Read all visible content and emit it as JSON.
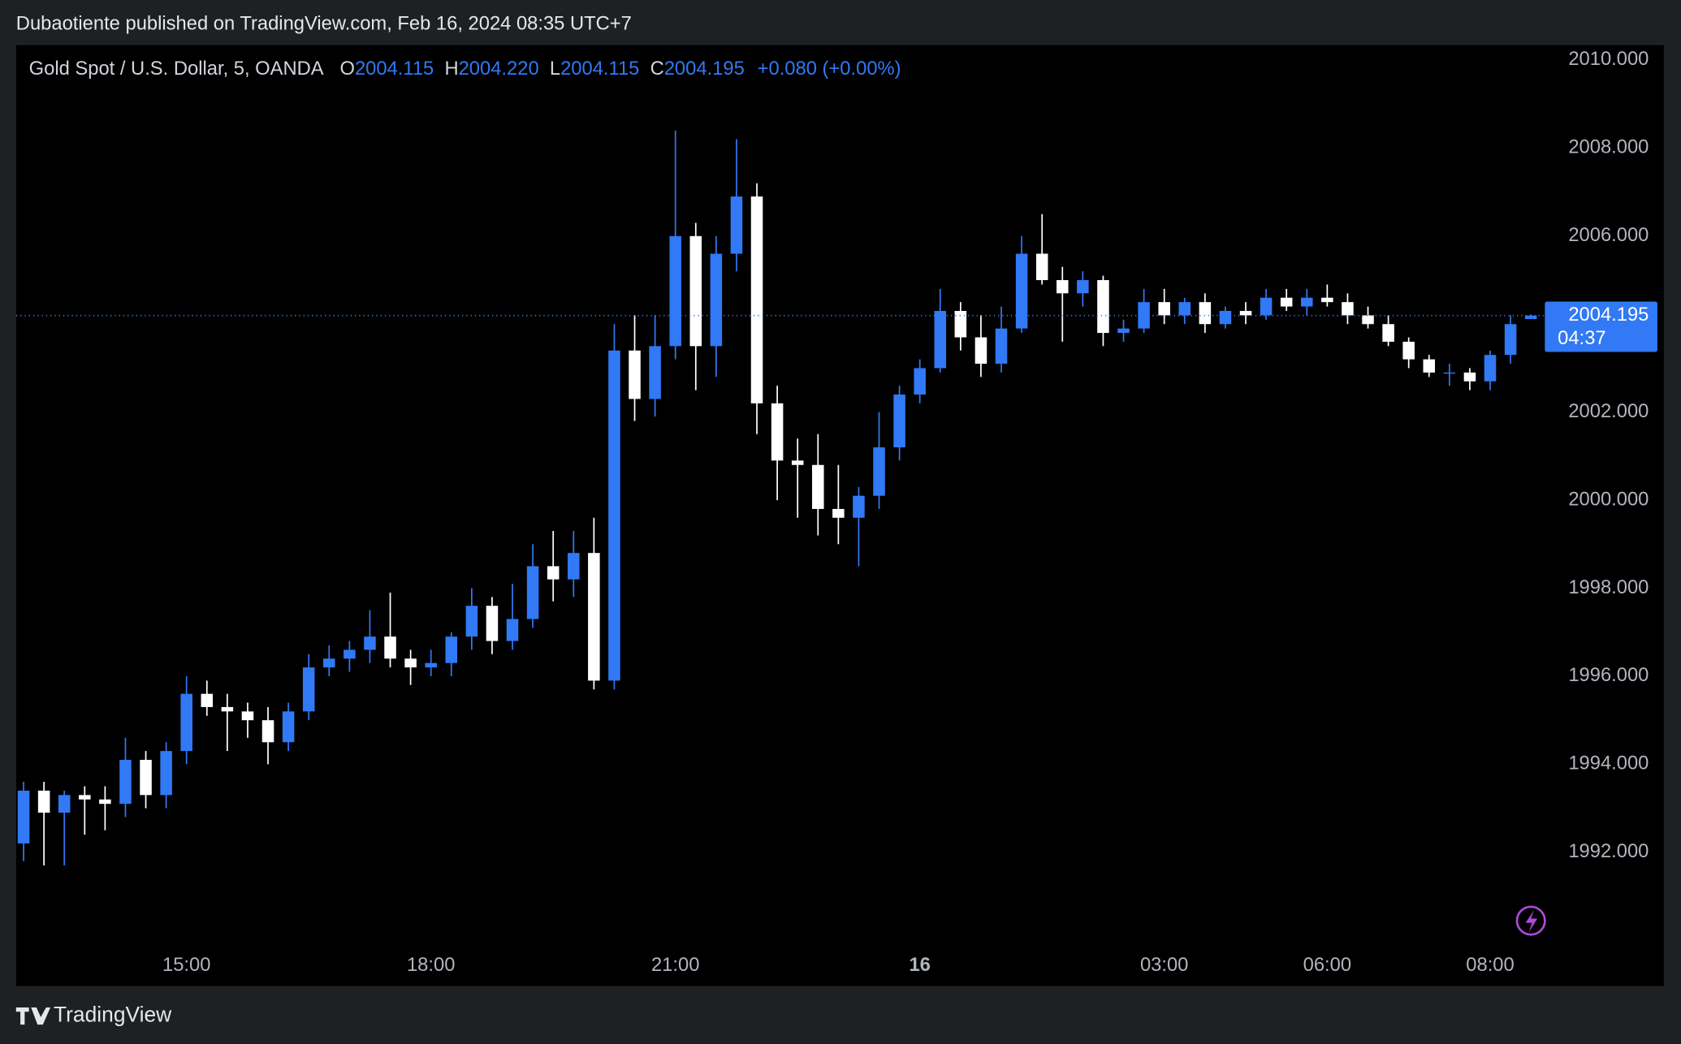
{
  "publisher_line": "Dubaotiente published on TradingView.com, Feb 16, 2024 08:35 UTC+7",
  "brand": "TradingView",
  "chart_data": {
    "type": "candlestick",
    "title": "Gold Spot / U.S. Dollar, 5, OANDA",
    "ohlc_legend": [
      {
        "key": "O",
        "text": "2004.115"
      },
      {
        "key": "H",
        "text": "2004.220"
      },
      {
        "key": "L",
        "text": "2004.115"
      },
      {
        "key": "C",
        "text": "2004.195"
      }
    ],
    "change": "+0.080 (+0.00%)",
    "last_price": {
      "value": 2004.195,
      "label": "2004.195"
    },
    "countdown": "04:37",
    "up_color": "#3179f5",
    "down_color": "#ffffff",
    "x": [
      "13:00",
      "13:15",
      "13:30",
      "13:45",
      "14:00",
      "14:15",
      "14:30",
      "14:45",
      "15:00",
      "15:15",
      "15:30",
      "15:45",
      "16:00",
      "16:15",
      "16:30",
      "16:45",
      "17:00",
      "17:15",
      "17:30",
      "17:45",
      "18:00",
      "18:15",
      "18:30",
      "18:45",
      "19:00",
      "19:15",
      "19:30",
      "19:45",
      "20:00",
      "20:15",
      "20:30",
      "20:45",
      "21:00",
      "21:15",
      "21:30",
      "21:45",
      "22:00",
      "22:15",
      "22:30",
      "22:45",
      "23:00",
      "23:15",
      "23:30",
      "23:45",
      "00:00",
      "00:15",
      "00:30",
      "00:45",
      "01:00",
      "01:15",
      "01:30",
      "01:45",
      "02:00",
      "02:15",
      "02:30",
      "02:45",
      "03:00",
      "03:15",
      "03:30",
      "03:45",
      "04:00",
      "04:15",
      "04:30",
      "04:45",
      "06:00",
      "06:15",
      "06:30",
      "06:45",
      "07:00",
      "07:15",
      "07:30",
      "07:45",
      "08:00",
      "08:15",
      "08:30"
    ],
    "open": [
      1992.2,
      1993.4,
      1992.9,
      1993.3,
      1993.2,
      1993.1,
      1994.1,
      1993.3,
      1994.3,
      1995.6,
      1995.3,
      1995.2,
      1995.0,
      1994.5,
      1995.2,
      1996.2,
      1996.4,
      1996.6,
      1996.9,
      1996.4,
      1996.2,
      1996.3,
      1996.9,
      1997.6,
      1996.8,
      1997.3,
      1998.5,
      1998.2,
      1998.8,
      1995.9,
      2003.4,
      2002.3,
      2003.5,
      2006.0,
      2003.5,
      2005.6,
      2006.9,
      2002.2,
      2000.9,
      2000.8,
      1999.8,
      1999.6,
      2000.1,
      2001.2,
      2002.4,
      2003.0,
      2004.3,
      2003.7,
      2003.1,
      2003.9,
      2005.6,
      2005.0,
      2004.7,
      2005.0,
      2003.8,
      2003.9,
      2004.5,
      2004.2,
      2004.5,
      2004.0,
      2004.3,
      2004.2,
      2004.6,
      2004.4,
      2004.6,
      2004.5,
      2004.2,
      2004.0,
      2003.6,
      2003.2,
      2002.9,
      2002.9,
      2002.7,
      2003.3,
      2004.115
    ],
    "high": [
      1993.6,
      1993.6,
      1993.4,
      1993.5,
      1993.5,
      1994.6,
      1994.3,
      1994.5,
      1996.0,
      1995.9,
      1995.6,
      1995.4,
      1995.3,
      1995.4,
      1996.5,
      1996.7,
      1996.8,
      1997.5,
      1997.9,
      1996.6,
      1996.6,
      1997.0,
      1998.0,
      1997.8,
      1998.1,
      1999.0,
      1999.3,
      1999.3,
      1999.6,
      2004.0,
      2004.2,
      2004.2,
      2008.4,
      2006.3,
      2006.0,
      2008.2,
      2007.2,
      2002.6,
      2001.4,
      2001.5,
      2000.8,
      2000.3,
      2002.0,
      2002.6,
      2003.2,
      2004.8,
      2004.5,
      2004.2,
      2004.4,
      2006.0,
      2006.5,
      2005.3,
      2005.2,
      2005.1,
      2004.1,
      2004.8,
      2004.8,
      2004.6,
      2004.7,
      2004.4,
      2004.5,
      2004.8,
      2004.8,
      2004.8,
      2004.9,
      2004.7,
      2004.4,
      2004.2,
      2003.7,
      2003.3,
      2003.1,
      2003.0,
      2003.4,
      2004.2,
      2004.22
    ],
    "low": [
      1991.8,
      1991.7,
      1991.7,
      1992.4,
      1992.5,
      1992.8,
      1993.0,
      1993.0,
      1994.0,
      1995.1,
      1994.3,
      1994.6,
      1994.0,
      1994.3,
      1995.0,
      1996.0,
      1996.1,
      1996.3,
      1996.2,
      1995.8,
      1996.0,
      1996.0,
      1996.6,
      1996.5,
      1996.6,
      1997.1,
      1997.7,
      1997.8,
      1995.7,
      1995.7,
      2001.8,
      2001.9,
      2003.2,
      2002.5,
      2002.8,
      2005.2,
      2001.5,
      2000.0,
      1999.6,
      1999.2,
      1999.0,
      1998.5,
      1999.8,
      2000.9,
      2002.2,
      2002.9,
      2003.4,
      2002.8,
      2002.9,
      2003.8,
      2004.9,
      2003.6,
      2004.4,
      2003.5,
      2003.6,
      2003.8,
      2004.0,
      2004.0,
      2003.8,
      2003.9,
      2004.0,
      2004.1,
      2004.3,
      2004.2,
      2004.4,
      2004.0,
      2003.9,
      2003.5,
      2003.0,
      2002.8,
      2002.6,
      2002.5,
      2002.5,
      2003.1,
      2004.115
    ],
    "close": [
      1993.4,
      1992.9,
      1993.3,
      1993.2,
      1993.1,
      1994.1,
      1993.3,
      1994.3,
      1995.6,
      1995.3,
      1995.2,
      1995.0,
      1994.5,
      1995.2,
      1996.2,
      1996.4,
      1996.6,
      1996.9,
      1996.4,
      1996.2,
      1996.3,
      1996.9,
      1997.6,
      1996.8,
      1997.3,
      1998.5,
      1998.2,
      1998.8,
      1995.9,
      2003.4,
      2002.3,
      2003.5,
      2006.0,
      2003.5,
      2005.6,
      2006.9,
      2002.2,
      2000.9,
      2000.8,
      1999.8,
      1999.6,
      2000.1,
      2001.2,
      2002.4,
      2003.0,
      2004.3,
      2003.7,
      2003.1,
      2003.9,
      2005.6,
      2005.0,
      2004.7,
      2005.0,
      2003.8,
      2003.9,
      2004.5,
      2004.2,
      2004.5,
      2004.0,
      2004.3,
      2004.2,
      2004.6,
      2004.4,
      2004.6,
      2004.5,
      2004.2,
      2004.0,
      2003.6,
      2003.2,
      2002.9,
      2002.9,
      2002.7,
      2003.3,
      2004.0,
      2004.195
    ],
    "ylim": [
      1988.96,
      2010.34
    ],
    "yticks": [
      {
        "value": 1992,
        "label": "1992.000"
      },
      {
        "value": 1994,
        "label": "1994.000"
      },
      {
        "value": 1996,
        "label": "1996.000"
      },
      {
        "value": 1998,
        "label": "1998.000"
      },
      {
        "value": 2000,
        "label": "2000.000"
      },
      {
        "value": 2002,
        "label": "2002.000"
      },
      {
        "value": 2004,
        "label": "2004.000"
      },
      {
        "value": 2006,
        "label": "2006.000"
      },
      {
        "value": 2008,
        "label": "2008.000"
      },
      {
        "value": 2010,
        "label": "2010.000"
      }
    ],
    "xticks": [
      {
        "value": "15:00",
        "label": "15:00"
      },
      {
        "value": "18:00",
        "label": "18:00"
      },
      {
        "value": "21:00",
        "label": "21:00"
      },
      {
        "value": "00:00",
        "label": "16"
      },
      {
        "value": "03:00",
        "label": "03:00"
      },
      {
        "value": "06:00",
        "label": "06:00"
      },
      {
        "value": "08:00",
        "label": "08:00"
      }
    ]
  }
}
